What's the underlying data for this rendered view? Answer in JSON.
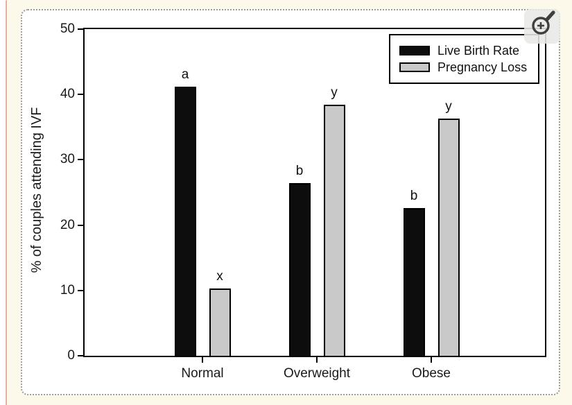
{
  "chart_data": {
    "type": "bar",
    "title": "",
    "xlabel": "",
    "ylabel": "% of couples attending IVF",
    "categories": [
      "Normal",
      "Overweight",
      "Obese"
    ],
    "series": [
      {
        "name": "Live Birth Rate",
        "color": "#0d0d0d",
        "values": [
          41.2,
          26.4,
          22.6
        ],
        "sig_labels": [
          "a",
          "b",
          "b"
        ]
      },
      {
        "name": "Pregnancy Loss",
        "color": "#c9c9c9",
        "values": [
          10.3,
          38.4,
          36.3
        ],
        "sig_labels": [
          "x",
          "y",
          "y"
        ]
      }
    ],
    "ylim": [
      0,
      50
    ],
    "yticks": [
      0,
      10,
      20,
      30,
      40,
      50
    ],
    "grid": false,
    "legend_position": "top-right"
  },
  "colors": {
    "panel_background": "#fcf8ea",
    "panel_left_border": "#e2b3a4",
    "frame_dots": "#9c9c9c",
    "axis": "#000000",
    "bar_black": "#0d0d0d",
    "bar_gray": "#c9c9c9"
  },
  "controls": {
    "magnifier_icon": "zoom-in-magnifier"
  }
}
